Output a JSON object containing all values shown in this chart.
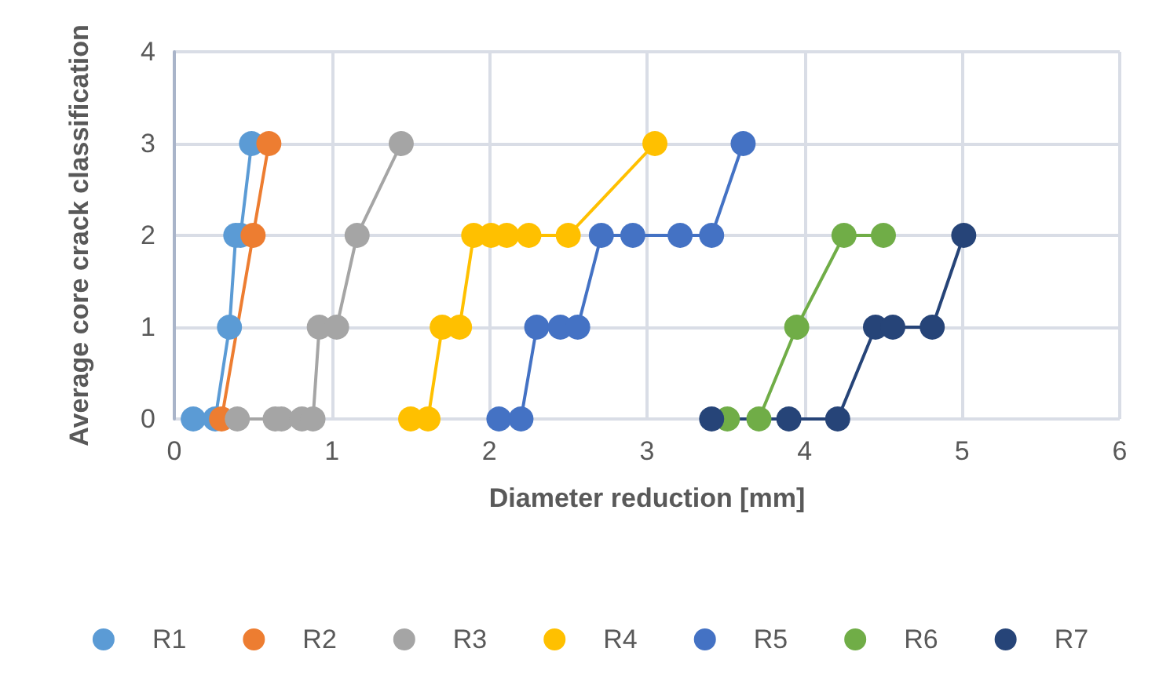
{
  "chart_data": {
    "type": "line",
    "xlabel": "Diameter reduction [mm]",
    "ylabel": "Average core crack classification",
    "xlim": [
      0,
      6
    ],
    "xticks": [
      0,
      1,
      2,
      3,
      4,
      5,
      6
    ],
    "ylim": [
      0,
      4
    ],
    "yticks": [
      0,
      1,
      2,
      3,
      4
    ],
    "grid": true,
    "legend": "bottom",
    "marker": "circle",
    "line_style": "solid",
    "series": [
      {
        "name": "R1",
        "color": "#5b9bd5",
        "x": [
          0.12,
          0.26,
          0.35,
          0.39,
          0.42,
          0.49
        ],
        "values": [
          0,
          0,
          1,
          2,
          2,
          3
        ]
      },
      {
        "name": "R2",
        "color": "#ed7d31",
        "x": [
          0.3,
          0.5,
          0.6
        ],
        "values": [
          0,
          2,
          3
        ]
      },
      {
        "name": "R3",
        "color": "#a5a5a5",
        "x": [
          0.4,
          0.64,
          0.68,
          0.81,
          0.88,
          0.92,
          1.03,
          1.16,
          1.44
        ],
        "values": [
          0,
          0,
          0,
          0,
          0,
          1,
          1,
          2,
          3
        ]
      },
      {
        "name": "R4",
        "color": "#ffc000",
        "x": [
          1.5,
          1.61,
          1.7,
          1.81,
          1.9,
          2.01,
          2.11,
          2.25,
          2.5,
          3.05
        ],
        "values": [
          0,
          0,
          1,
          1,
          2,
          2,
          2,
          2,
          2,
          3
        ]
      },
      {
        "name": "R5",
        "color": "#4472c4",
        "x": [
          2.06,
          2.2,
          2.3,
          2.45,
          2.56,
          2.71,
          2.91,
          3.21,
          3.41,
          3.61
        ],
        "values": [
          0,
          0,
          1,
          1,
          1,
          2,
          2,
          2,
          2,
          3
        ]
      },
      {
        "name": "R6",
        "color": "#70ad47",
        "x": [
          3.51,
          3.71,
          3.95,
          4.25,
          4.5
        ],
        "values": [
          0,
          0,
          1,
          2,
          2
        ]
      },
      {
        "name": "R7",
        "color": "#264478",
        "x": [
          3.41,
          3.9,
          4.21,
          4.45,
          4.56,
          4.81,
          5.01
        ],
        "values": [
          0,
          0,
          0,
          1,
          1,
          1,
          2
        ]
      }
    ]
  }
}
